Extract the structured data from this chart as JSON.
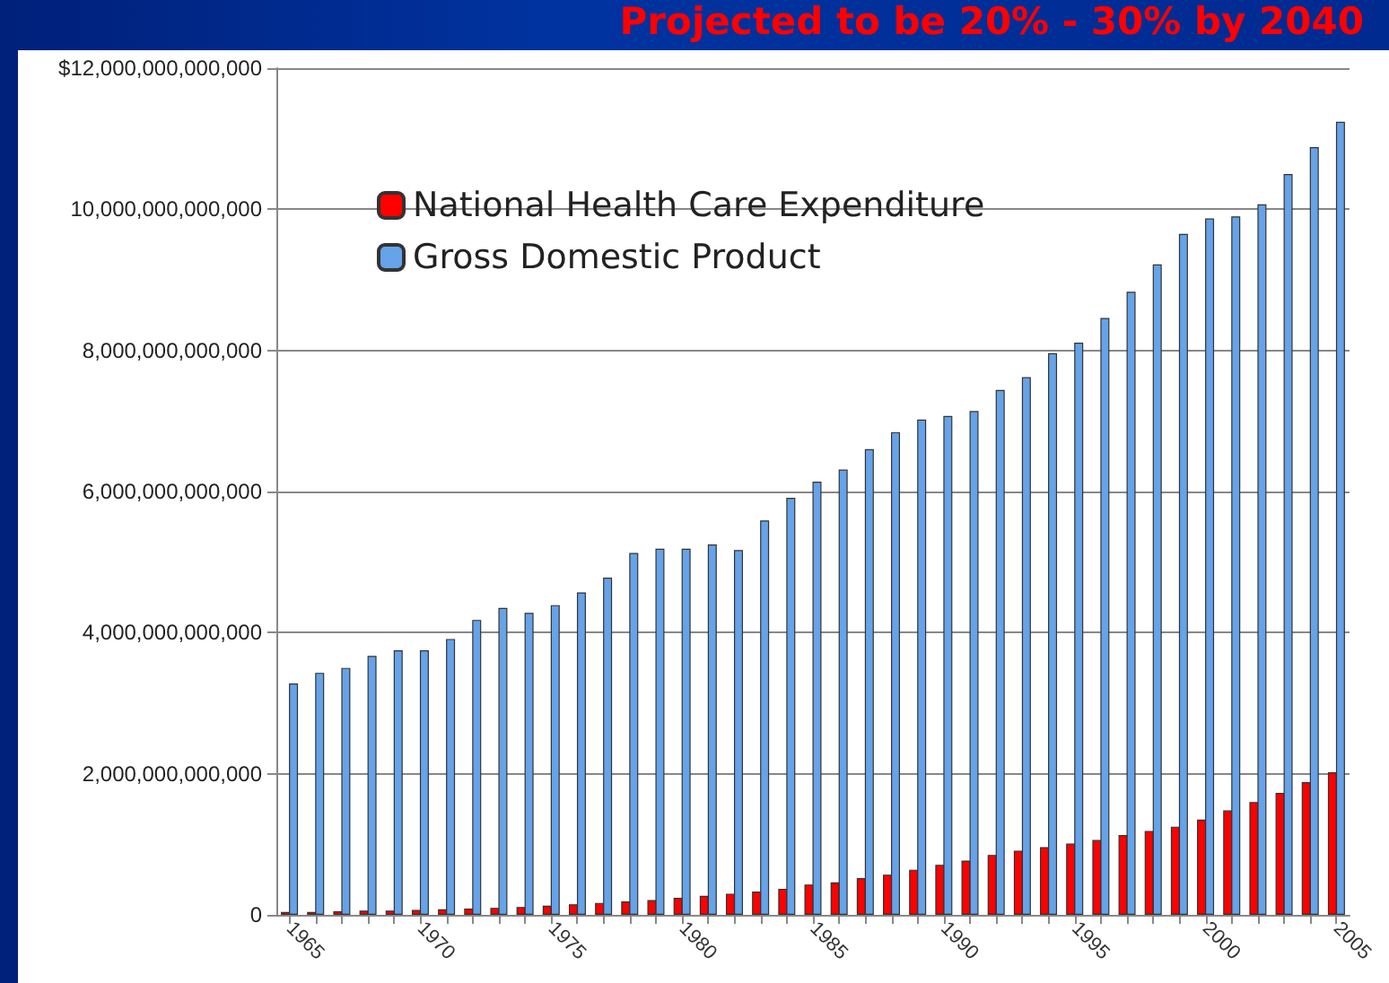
{
  "chart_data": {
    "type": "bar",
    "title": "Projected to be 20% - 30% by 2040",
    "categories": [
      "1965",
      null,
      null,
      null,
      null,
      "1970",
      null,
      null,
      null,
      null,
      "1975",
      null,
      null,
      null,
      null,
      "1980",
      null,
      null,
      null,
      null,
      "1985",
      null,
      null,
      null,
      null,
      "1990",
      null,
      null,
      null,
      null,
      "1995",
      null,
      null,
      null,
      null,
      "2000",
      null,
      null,
      null,
      null,
      "2005"
    ],
    "series": [
      {
        "name": "National Health Care Expenditure",
        "color": "#ff0000",
        "values": [
          40000000000.0,
          40000000000.0,
          50000000000.0,
          60000000000.0,
          60000000000.0,
          70000000000.0,
          80000000000.0,
          90000000000.0,
          100000000000.0,
          110000000000.0,
          130000000000.0,
          150000000000.0,
          170000000000.0,
          190000000000.0,
          210000000000.0,
          240000000000.0,
          270000000000.0,
          300000000000.0,
          330000000000.0,
          370000000000.0,
          430000000000.0,
          460000000000.0,
          520000000000.0,
          570000000000.0,
          640000000000.0,
          710000000000.0,
          770000000000.0,
          850000000000.0,
          910000000000.0,
          960000000000.0,
          1010000000000.0,
          1060000000000.0,
          1130000000000.0,
          1190000000000.0,
          1250000000000.0,
          1350000000000.0,
          1480000000000.0,
          1600000000000.0,
          1730000000000.0,
          1880000000000.0,
          2020000000000.0
        ]
      },
      {
        "name": "Gross Domestic Product",
        "color": "#66a3e8",
        "values": [
          3280000000000.0,
          3430000000000.0,
          3500000000000.0,
          3670000000000.0,
          3750000000000.0,
          3750000000000.0,
          3910000000000.0,
          4180000000000.0,
          4350000000000.0,
          4280000000000.0,
          4390000000000.0,
          4570000000000.0,
          4780000000000.0,
          5130000000000.0,
          5190000000000.0,
          5190000000000.0,
          5250000000000.0,
          5170000000000.0,
          5590000000000.0,
          5910000000000.0,
          6140000000000.0,
          6310000000000.0,
          6600000000000.0,
          6840000000000.0,
          7020000000000.0,
          7070000000000.0,
          7140000000000.0,
          7440000000000.0,
          7620000000000.0,
          7960000000000.0,
          8110000000000.0,
          8460000000000.0,
          8830000000000.0,
          9220000000000.0,
          9650000000000.0,
          9870000000000.0,
          9900000000000.0,
          10070000000000.0,
          10500000000000.0,
          10880000000000.0,
          11240000000000.0
        ]
      }
    ],
    "ylim": [
      0,
      12000000000000
    ],
    "yticks": [
      {
        "value": 0,
        "label": "0"
      },
      {
        "value": 2000000000000,
        "label": "2,000,000,000,000"
      },
      {
        "value": 4000000000000,
        "label": "4,000,000,000,000"
      },
      {
        "value": 6000000000000,
        "label": "6,000,000,000,000"
      },
      {
        "value": 8000000000000,
        "label": "8,000,000,000,000"
      },
      {
        "value": 10000000000000,
        "label": "10,000,000,000,000"
      },
      {
        "value": 12000000000000,
        "label": "$12,000,000,000,000"
      }
    ],
    "grid": "y",
    "legend": "top left"
  }
}
